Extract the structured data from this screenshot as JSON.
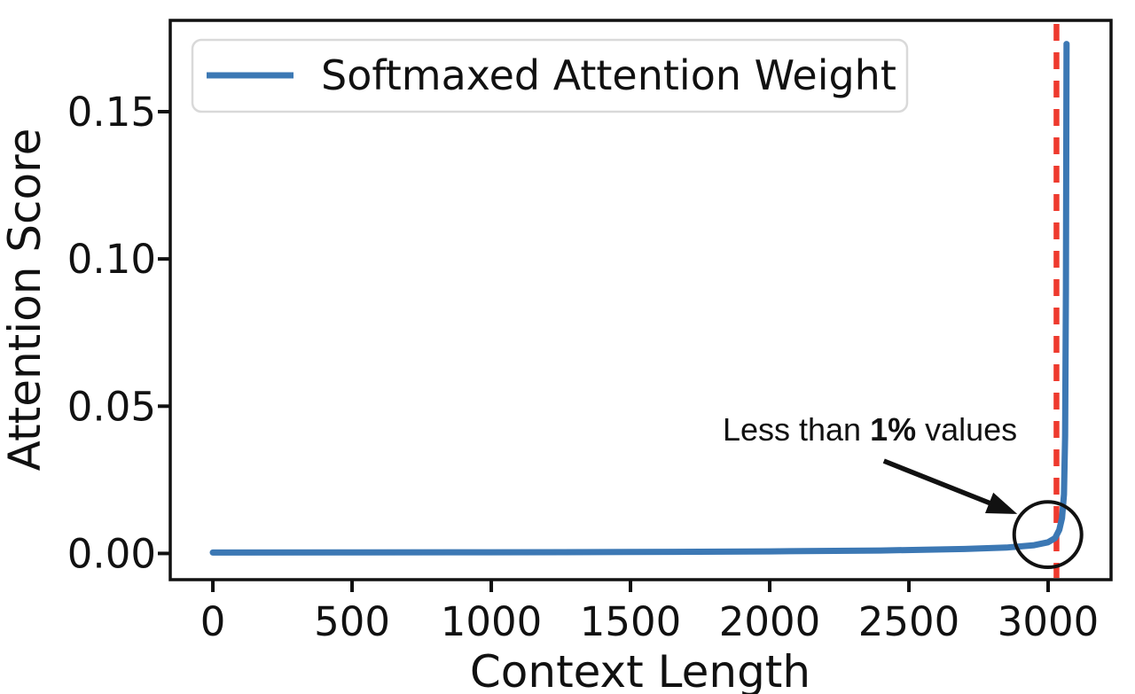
{
  "figure": {
    "xlabel": "Context Length",
    "ylabel": "Attention Score",
    "legend": {
      "label": "Softmaxed Attention Weight"
    },
    "annotation": {
      "parts": [
        "Less than ",
        "1%",
        " values"
      ]
    }
  },
  "colors": {
    "line_blue": "#3c78b4",
    "vline_red": "#ee3a2e",
    "axis_black": "#111111",
    "legend_border": "#d9d9d9",
    "background": "#ffffff"
  },
  "chart_data": {
    "type": "line",
    "title": "",
    "xlabel": "Context Length",
    "ylabel": "Attention Score",
    "grid": false,
    "legend_position": "upper left",
    "xlim": [
      -153,
      3226
    ],
    "ylim": [
      -0.0089,
      0.181
    ],
    "x_ticks": [
      0,
      500,
      1000,
      1500,
      2000,
      2500,
      3000
    ],
    "x_tick_labels": [
      "0",
      "500",
      "1000",
      "1500",
      "2000",
      "2500",
      "3000"
    ],
    "y_ticks": [
      0.0,
      0.05,
      0.1,
      0.15
    ],
    "y_tick_labels": [
      "0.00",
      "0.05",
      "0.10",
      "0.15"
    ],
    "series": [
      {
        "name": "Softmaxed Attention Weight",
        "color": "#3c78b4",
        "x": [
          0,
          500,
          1000,
          1500,
          2000,
          2400,
          2700,
          2850,
          2950,
          3000,
          3025,
          3040,
          3050,
          3057,
          3061,
          3064,
          3066
        ],
        "y": [
          0.0003,
          0.00035,
          0.0004,
          0.0005,
          0.0007,
          0.001,
          0.0015,
          0.002,
          0.0028,
          0.0038,
          0.0052,
          0.008,
          0.012,
          0.02,
          0.04,
          0.09,
          0.173
        ]
      }
    ],
    "peak_value": 0.173,
    "vline": {
      "x": 3030,
      "color": "#ee3a2e",
      "style": "dashed"
    },
    "annotation": {
      "text": "Less than 1% values",
      "bold_part": "1%",
      "text_anchor_x": 2360,
      "text_anchor_y": 0.0383,
      "arrow_tail_x": 2410,
      "arrow_tail_y": 0.0314,
      "arrow_tip_x": 2889,
      "arrow_tip_y": 0.0134,
      "circle_cx": 2999,
      "circle_cy": 0.0064,
      "circle_rx": 121,
      "circle_ry": 0.0111
    }
  }
}
